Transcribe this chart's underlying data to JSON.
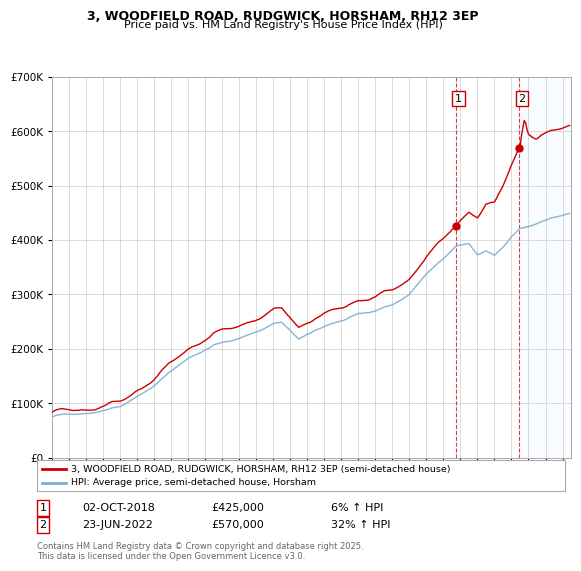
{
  "title": "3, WOODFIELD ROAD, RUDGWICK, HORSHAM, RH12 3EP",
  "subtitle": "Price paid vs. HM Land Registry's House Price Index (HPI)",
  "legend_line1": "3, WOODFIELD ROAD, RUDGWICK, HORSHAM, RH12 3EP (semi-detached house)",
  "legend_line2": "HPI: Average price, semi-detached house, Horsham",
  "annotation1_date": "02-OCT-2018",
  "annotation1_price": "£425,000",
  "annotation1_hpi": "6% ↑ HPI",
  "annotation2_date": "23-JUN-2022",
  "annotation2_price": "£570,000",
  "annotation2_hpi": "32% ↑ HPI",
  "sale1_year": 2018.75,
  "sale1_value": 425000,
  "sale2_year": 2022.47,
  "sale2_value": 570000,
  "red_color": "#cc0000",
  "blue_color": "#7aadcf",
  "grid_color": "#cccccc",
  "bg_color": "#ffffff",
  "shade_color": "#ddeeff",
  "footer": "Contains HM Land Registry data © Crown copyright and database right 2025.\nThis data is licensed under the Open Government Licence v3.0.",
  "ylim": [
    0,
    700000
  ],
  "xlim_start": 1995,
  "xlim_end": 2025.5
}
